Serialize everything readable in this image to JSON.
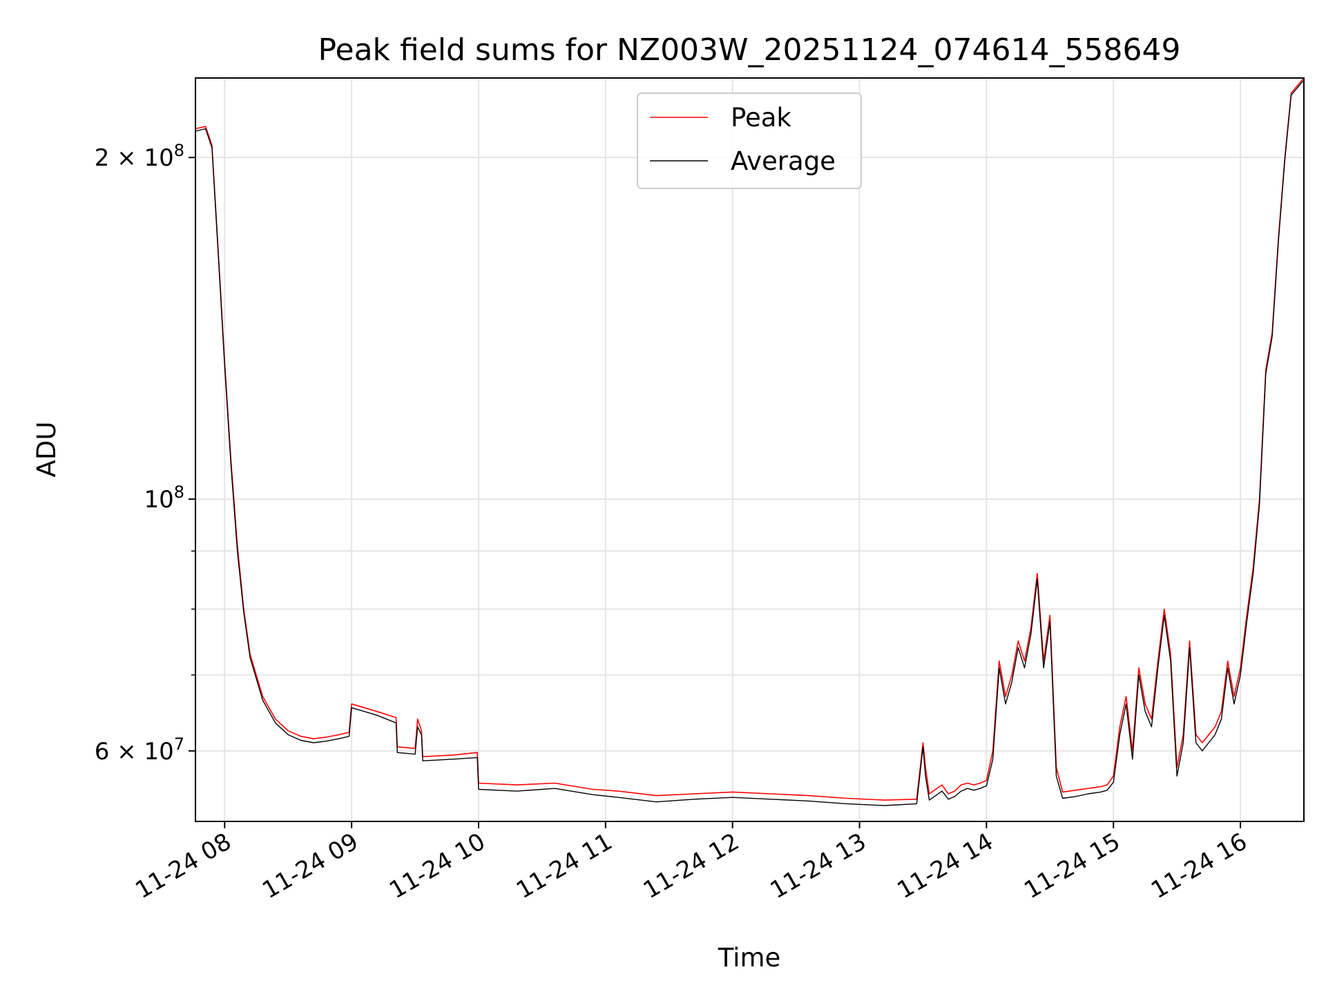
{
  "chart_data": {
    "type": "line",
    "title": "Peak field sums for NZ003W_20251124_074614_558649",
    "xlabel": "Time",
    "ylabel": "ADU",
    "yscale": "log",
    "ylim": [
      52000000,
      235000000
    ],
    "xlim_hours": [
      7.77,
      16.5
    ],
    "grid": true,
    "legend_position": "top-center",
    "x_ticks": [
      {
        "hour": 8,
        "label": "11-24 08"
      },
      {
        "hour": 9,
        "label": "11-24 09"
      },
      {
        "hour": 10,
        "label": "11-24 10"
      },
      {
        "hour": 11,
        "label": "11-24 11"
      },
      {
        "hour": 12,
        "label": "11-24 12"
      },
      {
        "hour": 13,
        "label": "11-24 13"
      },
      {
        "hour": 14,
        "label": "11-24 14"
      },
      {
        "hour": 15,
        "label": "11-24 15"
      },
      {
        "hour": 16,
        "label": "11-24 16"
      }
    ],
    "y_major_ticks": [
      {
        "value": 60000000,
        "mantissa": "6",
        "exponent": "7"
      },
      {
        "value": 100000000,
        "mantissa": "",
        "exponent": "8"
      },
      {
        "value": 200000000,
        "mantissa": "2",
        "exponent": "8"
      }
    ],
    "y_minor_ticks": [
      70000000,
      80000000,
      90000000
    ],
    "times_label": "x values are hours of day on 2025-11-24",
    "series": [
      {
        "name": "Peak",
        "color": "#ff0000",
        "x": [
          7.77,
          7.85,
          7.9,
          7.95,
          8.0,
          8.05,
          8.1,
          8.15,
          8.2,
          8.3,
          8.4,
          8.5,
          8.6,
          8.7,
          8.8,
          8.9,
          8.98,
          9.0,
          9.2,
          9.35,
          9.36,
          9.5,
          9.52,
          9.55,
          9.56,
          9.8,
          9.99,
          10.0,
          10.3,
          10.6,
          10.9,
          11.1,
          11.4,
          11.7,
          12.0,
          12.3,
          12.6,
          12.9,
          13.2,
          13.45,
          13.5,
          13.52,
          13.55,
          13.6,
          13.65,
          13.7,
          13.75,
          13.8,
          13.85,
          13.9,
          13.95,
          14.0,
          14.05,
          14.1,
          14.15,
          14.2,
          14.25,
          14.3,
          14.35,
          14.4,
          14.45,
          14.5,
          14.55,
          14.6,
          14.7,
          14.8,
          14.9,
          14.95,
          15.0,
          15.05,
          15.1,
          15.15,
          15.2,
          15.25,
          15.3,
          15.35,
          15.4,
          15.45,
          15.5,
          15.55,
          15.6,
          15.65,
          15.7,
          15.75,
          15.8,
          15.85,
          15.9,
          15.95,
          16.0,
          16.05,
          16.1,
          16.15,
          16.2,
          16.25,
          16.3,
          16.35,
          16.4,
          16.5
        ],
        "y": [
          212000000,
          213000000,
          205000000,
          165000000,
          132000000,
          108000000,
          91000000,
          80000000,
          73000000,
          67000000,
          64000000,
          62500000,
          61800000,
          61500000,
          61700000,
          62000000,
          62300000,
          66000000,
          65000000,
          64200000,
          60500000,
          60300000,
          64000000,
          62500000,
          59300000,
          59500000,
          59800000,
          56200000,
          56000000,
          56200000,
          55500000,
          55300000,
          54800000,
          55000000,
          55200000,
          55000000,
          54800000,
          54500000,
          54300000,
          54400000,
          61000000,
          58000000,
          55000000,
          55500000,
          56000000,
          55000000,
          55300000,
          56000000,
          56200000,
          56000000,
          56200000,
          56500000,
          60000000,
          72000000,
          67000000,
          70000000,
          75000000,
          72000000,
          77000000,
          86000000,
          72000000,
          79000000,
          58000000,
          55200000,
          55400000,
          55600000,
          55800000,
          56000000,
          57000000,
          63000000,
          67000000,
          60000000,
          71000000,
          66000000,
          64000000,
          72000000,
          80000000,
          73000000,
          58000000,
          62000000,
          75000000,
          62000000,
          61000000,
          62000000,
          63000000,
          65000000,
          72000000,
          67000000,
          71000000,
          79000000,
          87000000,
          100000000,
          130000000,
          140000000,
          170000000,
          200000000,
          228000000,
          235000000
        ]
      },
      {
        "name": "Average",
        "color": "#000000",
        "x": [
          7.77,
          7.85,
          7.9,
          7.95,
          8.0,
          8.05,
          8.1,
          8.15,
          8.2,
          8.3,
          8.4,
          8.5,
          8.6,
          8.7,
          8.8,
          8.9,
          8.98,
          9.0,
          9.2,
          9.35,
          9.36,
          9.5,
          9.52,
          9.55,
          9.56,
          9.8,
          9.99,
          10.0,
          10.3,
          10.6,
          10.9,
          11.1,
          11.4,
          11.7,
          12.0,
          12.3,
          12.6,
          12.9,
          13.2,
          13.45,
          13.5,
          13.52,
          13.55,
          13.6,
          13.65,
          13.7,
          13.75,
          13.8,
          13.85,
          13.9,
          13.95,
          14.0,
          14.05,
          14.1,
          14.15,
          14.2,
          14.25,
          14.3,
          14.35,
          14.4,
          14.45,
          14.5,
          14.55,
          14.6,
          14.7,
          14.8,
          14.9,
          14.95,
          15.0,
          15.05,
          15.1,
          15.15,
          15.2,
          15.25,
          15.3,
          15.35,
          15.4,
          15.45,
          15.5,
          15.55,
          15.6,
          15.65,
          15.7,
          15.75,
          15.8,
          15.85,
          15.9,
          15.95,
          16.0,
          16.05,
          16.1,
          16.15,
          16.2,
          16.25,
          16.3,
          16.35,
          16.4,
          16.5
        ],
        "y": [
          211000000,
          212000000,
          204000000,
          164000000,
          131000000,
          107000000,
          90000000,
          79500000,
          72500000,
          66500000,
          63500000,
          62000000,
          61300000,
          61000000,
          61200000,
          61500000,
          61800000,
          65500000,
          64500000,
          63500000,
          59800000,
          59600000,
          63000000,
          62000000,
          58800000,
          59000000,
          59200000,
          55500000,
          55300000,
          55600000,
          54900000,
          54600000,
          54100000,
          54400000,
          54600000,
          54400000,
          54200000,
          53900000,
          53700000,
          53900000,
          60500000,
          57000000,
          54300000,
          54800000,
          55300000,
          54400000,
          54700000,
          55300000,
          55600000,
          55400000,
          55600000,
          55900000,
          59000000,
          71000000,
          66000000,
          69000000,
          74000000,
          71000000,
          76000000,
          85000000,
          71000000,
          78000000,
          57000000,
          54500000,
          54700000,
          55000000,
          55200000,
          55400000,
          56300000,
          62000000,
          66000000,
          59000000,
          70000000,
          65000000,
          63000000,
          71000000,
          79000000,
          72000000,
          57000000,
          61000000,
          74000000,
          61000000,
          60000000,
          61000000,
          62000000,
          64000000,
          71000000,
          66000000,
          70000000,
          78000000,
          86000000,
          99000000,
          129000000,
          139000000,
          169000000,
          199000000,
          227000000,
          234000000
        ]
      }
    ]
  }
}
